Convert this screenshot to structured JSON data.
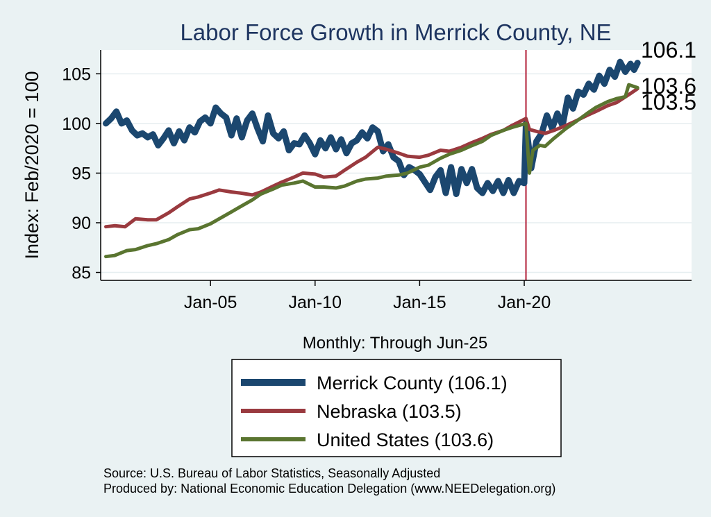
{
  "chart_data": {
    "type": "line",
    "title": "Labor Force Growth in Merrick  County, NE",
    "xlabel": "Monthly: Through Jun-25",
    "ylabel": "Index: Feb/2020 = 100",
    "x_ticks": [
      "Jan-05",
      "Jan-10",
      "Jan-15",
      "Jan-20"
    ],
    "y_ticks": [
      85,
      90,
      95,
      100,
      105
    ],
    "ylim": [
      84.2,
      107.4
    ],
    "xlim": [
      "1999-10",
      "2028-01"
    ],
    "x_start": "2000-01",
    "x_end": "2025-06",
    "reference_line": {
      "x": "2020-02",
      "color": "#b11b35"
    },
    "grid": true,
    "legend_position": "bottom",
    "series": [
      {
        "name": "Merrick  County (106.1)",
        "end_label": "106.1",
        "color": "#1b476f",
        "width": 9,
        "points": [
          [
            "2000-01",
            100.0
          ],
          [
            "2000-04",
            100.5
          ],
          [
            "2000-07",
            101.2
          ],
          [
            "2000-10",
            100.0
          ],
          [
            "2001-01",
            100.3
          ],
          [
            "2001-04",
            99.3
          ],
          [
            "2001-07",
            98.8
          ],
          [
            "2001-10",
            99.0
          ],
          [
            "2002-01",
            98.6
          ],
          [
            "2002-04",
            98.9
          ],
          [
            "2002-07",
            97.8
          ],
          [
            "2002-10",
            98.5
          ],
          [
            "2003-01",
            99.3
          ],
          [
            "2003-04",
            98.0
          ],
          [
            "2003-07",
            99.2
          ],
          [
            "2003-10",
            98.3
          ],
          [
            "2004-01",
            99.6
          ],
          [
            "2004-04",
            99.1
          ],
          [
            "2004-07",
            100.2
          ],
          [
            "2004-10",
            100.6
          ],
          [
            "2005-01",
            100.0
          ],
          [
            "2005-04",
            101.6
          ],
          [
            "2005-07",
            101.0
          ],
          [
            "2005-10",
            100.6
          ],
          [
            "2006-01",
            98.8
          ],
          [
            "2006-04",
            100.5
          ],
          [
            "2006-07",
            98.6
          ],
          [
            "2006-10",
            100.3
          ],
          [
            "2007-01",
            101.0
          ],
          [
            "2007-04",
            99.5
          ],
          [
            "2007-07",
            98.2
          ],
          [
            "2007-10",
            100.8
          ],
          [
            "2008-01",
            99.0
          ],
          [
            "2008-04",
            98.5
          ],
          [
            "2008-07",
            99.2
          ],
          [
            "2008-10",
            97.3
          ],
          [
            "2009-01",
            98.0
          ],
          [
            "2009-04",
            97.9
          ],
          [
            "2009-07",
            98.8
          ],
          [
            "2009-10",
            98.0
          ],
          [
            "2010-01",
            96.9
          ],
          [
            "2010-04",
            98.3
          ],
          [
            "2010-07",
            97.5
          ],
          [
            "2010-10",
            98.6
          ],
          [
            "2011-01",
            97.4
          ],
          [
            "2011-04",
            98.4
          ],
          [
            "2011-07",
            97.0
          ],
          [
            "2011-10",
            98.0
          ],
          [
            "2012-01",
            98.3
          ],
          [
            "2012-04",
            99.1
          ],
          [
            "2012-07",
            98.5
          ],
          [
            "2012-10",
            99.6
          ],
          [
            "2013-01",
            99.2
          ],
          [
            "2013-04",
            97.2
          ],
          [
            "2013-07",
            97.9
          ],
          [
            "2013-10",
            96.6
          ],
          [
            "2014-01",
            96.2
          ],
          [
            "2014-04",
            94.8
          ],
          [
            "2014-07",
            95.6
          ],
          [
            "2014-10",
            95.3
          ],
          [
            "2015-01",
            94.9
          ],
          [
            "2015-04",
            94.1
          ],
          [
            "2015-07",
            93.3
          ],
          [
            "2015-10",
            94.6
          ],
          [
            "2016-01",
            95.3
          ],
          [
            "2016-04",
            93.0
          ],
          [
            "2016-07",
            95.6
          ],
          [
            "2016-10",
            92.9
          ],
          [
            "2017-01",
            95.4
          ],
          [
            "2017-04",
            94.0
          ],
          [
            "2017-07",
            95.4
          ],
          [
            "2017-10",
            93.5
          ],
          [
            "2018-01",
            93.0
          ],
          [
            "2018-04",
            94.0
          ],
          [
            "2018-07",
            93.2
          ],
          [
            "2018-10",
            94.2
          ],
          [
            "2019-01",
            93.0
          ],
          [
            "2019-04",
            94.3
          ],
          [
            "2019-07",
            93.0
          ],
          [
            "2019-10",
            94.2
          ],
          [
            "2020-01",
            94.0
          ],
          [
            "2020-02",
            100.0
          ],
          [
            "2020-03",
            98.5
          ],
          [
            "2020-05",
            95.5
          ],
          [
            "2020-08",
            98.2
          ],
          [
            "2020-11",
            99.0
          ],
          [
            "2021-02",
            100.8
          ],
          [
            "2021-05",
            99.5
          ],
          [
            "2021-08",
            101.0
          ],
          [
            "2021-11",
            99.8
          ],
          [
            "2022-02",
            102.6
          ],
          [
            "2022-05",
            101.5
          ],
          [
            "2022-08",
            103.2
          ],
          [
            "2022-11",
            102.9
          ],
          [
            "2023-02",
            104.0
          ],
          [
            "2023-05",
            103.4
          ],
          [
            "2023-08",
            104.8
          ],
          [
            "2023-11",
            104.0
          ],
          [
            "2024-02",
            105.4
          ],
          [
            "2024-05",
            104.7
          ],
          [
            "2024-08",
            106.2
          ],
          [
            "2024-11",
            105.2
          ],
          [
            "2025-02",
            106.0
          ],
          [
            "2025-04",
            105.4
          ],
          [
            "2025-06",
            106.1
          ]
        ]
      },
      {
        "name": "Nebraska (103.5)",
        "end_label": "103.5",
        "color": "#9a3a3f",
        "width": 5,
        "points": [
          [
            "2000-01",
            89.6
          ],
          [
            "2000-06",
            89.7
          ],
          [
            "2000-12",
            89.6
          ],
          [
            "2001-06",
            90.4
          ],
          [
            "2002-01",
            90.3
          ],
          [
            "2002-06",
            90.3
          ],
          [
            "2003-01",
            91.0
          ],
          [
            "2003-06",
            91.6
          ],
          [
            "2004-01",
            92.4
          ],
          [
            "2004-06",
            92.6
          ],
          [
            "2005-01",
            93.0
          ],
          [
            "2005-06",
            93.3
          ],
          [
            "2006-01",
            93.1
          ],
          [
            "2006-06",
            93.0
          ],
          [
            "2007-01",
            92.8
          ],
          [
            "2007-06",
            93.1
          ],
          [
            "2008-01",
            93.7
          ],
          [
            "2008-06",
            94.1
          ],
          [
            "2009-01",
            94.6
          ],
          [
            "2009-06",
            95.0
          ],
          [
            "2010-01",
            94.9
          ],
          [
            "2010-06",
            94.6
          ],
          [
            "2011-01",
            94.7
          ],
          [
            "2011-06",
            95.3
          ],
          [
            "2012-01",
            96.1
          ],
          [
            "2012-06",
            96.6
          ],
          [
            "2013-01",
            97.6
          ],
          [
            "2013-06",
            97.4
          ],
          [
            "2014-01",
            97.0
          ],
          [
            "2014-06",
            96.7
          ],
          [
            "2015-01",
            96.6
          ],
          [
            "2015-06",
            96.8
          ],
          [
            "2016-01",
            97.3
          ],
          [
            "2016-06",
            97.2
          ],
          [
            "2017-01",
            97.6
          ],
          [
            "2017-06",
            98.0
          ],
          [
            "2018-01",
            98.5
          ],
          [
            "2018-06",
            98.9
          ],
          [
            "2019-01",
            99.3
          ],
          [
            "2019-06",
            99.8
          ],
          [
            "2020-02",
            100.5
          ],
          [
            "2020-04",
            99.4
          ],
          [
            "2020-08",
            99.2
          ],
          [
            "2021-01",
            99.0
          ],
          [
            "2021-06",
            99.3
          ],
          [
            "2022-01",
            99.8
          ],
          [
            "2022-06",
            100.2
          ],
          [
            "2023-01",
            100.8
          ],
          [
            "2023-06",
            101.2
          ],
          [
            "2024-01",
            101.8
          ],
          [
            "2024-06",
            102.1
          ],
          [
            "2025-01",
            102.9
          ],
          [
            "2025-06",
            103.5
          ]
        ]
      },
      {
        "name": "United States (103.6)",
        "end_label": "103.6",
        "color": "#5a7530",
        "width": 5,
        "points": [
          [
            "2000-01",
            86.6
          ],
          [
            "2000-06",
            86.7
          ],
          [
            "2001-01",
            87.2
          ],
          [
            "2001-06",
            87.3
          ],
          [
            "2002-01",
            87.7
          ],
          [
            "2002-06",
            87.9
          ],
          [
            "2003-01",
            88.3
          ],
          [
            "2003-06",
            88.8
          ],
          [
            "2004-01",
            89.3
          ],
          [
            "2004-06",
            89.4
          ],
          [
            "2005-01",
            89.9
          ],
          [
            "2005-06",
            90.4
          ],
          [
            "2006-01",
            91.1
          ],
          [
            "2006-06",
            91.6
          ],
          [
            "2007-01",
            92.3
          ],
          [
            "2007-06",
            92.9
          ],
          [
            "2008-01",
            93.4
          ],
          [
            "2008-06",
            93.8
          ],
          [
            "2009-01",
            94.0
          ],
          [
            "2009-06",
            94.2
          ],
          [
            "2010-01",
            93.6
          ],
          [
            "2010-06",
            93.6
          ],
          [
            "2011-01",
            93.5
          ],
          [
            "2011-06",
            93.7
          ],
          [
            "2012-01",
            94.2
          ],
          [
            "2012-06",
            94.4
          ],
          [
            "2013-01",
            94.5
          ],
          [
            "2013-06",
            94.7
          ],
          [
            "2014-01",
            94.8
          ],
          [
            "2014-06",
            95.0
          ],
          [
            "2015-01",
            95.6
          ],
          [
            "2015-06",
            95.8
          ],
          [
            "2016-01",
            96.5
          ],
          [
            "2016-06",
            96.9
          ],
          [
            "2017-01",
            97.3
          ],
          [
            "2017-06",
            97.7
          ],
          [
            "2018-01",
            98.2
          ],
          [
            "2018-06",
            98.8
          ],
          [
            "2019-01",
            99.3
          ],
          [
            "2019-06",
            99.6
          ],
          [
            "2020-02",
            100.0
          ],
          [
            "2020-04",
            95.0
          ],
          [
            "2020-06",
            97.3
          ],
          [
            "2020-10",
            97.8
          ],
          [
            "2021-01",
            97.7
          ],
          [
            "2021-06",
            98.5
          ],
          [
            "2022-01",
            99.5
          ],
          [
            "2022-06",
            100.1
          ],
          [
            "2023-01",
            101.0
          ],
          [
            "2023-06",
            101.6
          ],
          [
            "2024-01",
            102.2
          ],
          [
            "2024-06",
            102.5
          ],
          [
            "2024-11",
            102.7
          ],
          [
            "2025-01",
            103.9
          ],
          [
            "2025-06",
            103.6
          ]
        ]
      }
    ]
  },
  "notes": {
    "source_line": "Source: U.S. Bureau of Labor Statistics, Seasonally Adjusted",
    "produced_line": "Produced by: National Economic Education Delegation (www.NEEDelegation.org)"
  }
}
